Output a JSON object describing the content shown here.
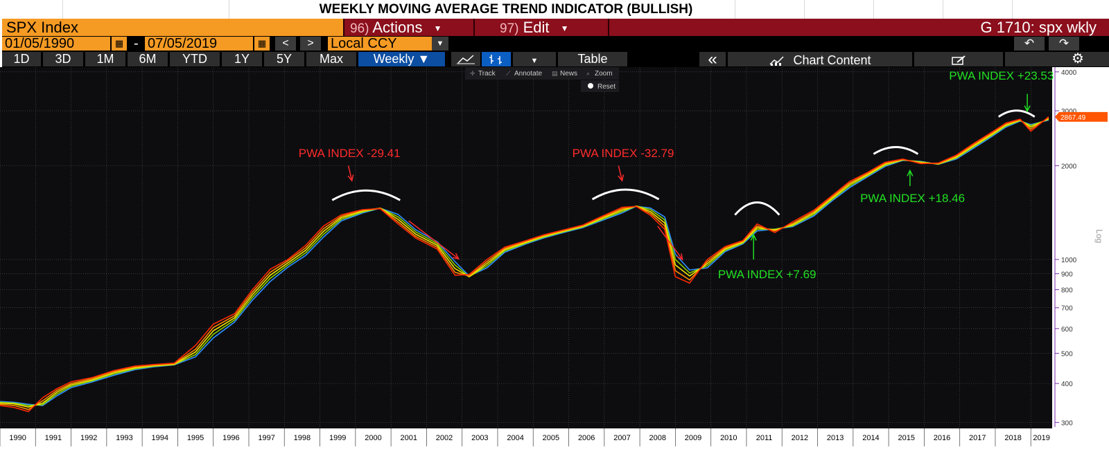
{
  "sheet": {
    "title": "WEEKLY MOVING AVERAGE TREND INDICATOR (BULLISH)"
  },
  "header": {
    "security": "SPX Index",
    "actions": {
      "num": "96)",
      "label": "Actions"
    },
    "edit": {
      "num": "97)",
      "label": "Edit"
    },
    "ticker": "G 1710: spx wkly"
  },
  "range": {
    "start": "01/05/1990",
    "dash": "-",
    "end": "07/05/2019",
    "prev": "<",
    "next": ">",
    "currency": "Local CCY"
  },
  "toolbar": {
    "periods": [
      "1D",
      "3D",
      "1M",
      "6M",
      "YTD",
      "1Y",
      "5Y",
      "Max"
    ],
    "frequency": "Weekly ▼",
    "table": "Table",
    "collapse": "«",
    "chart_content": "Chart Content"
  },
  "chart_tools": {
    "track": "Track",
    "annotate": "Annotate",
    "news": "News",
    "zoom": "Zoom",
    "reset": "Reset"
  },
  "colors": {
    "background": "#0d0d10",
    "grid": "#5a5a5a",
    "ma_red": "#ff2a00",
    "ma_orange": "#ff8c00",
    "ma_yellow": "#f5e400",
    "ma_green": "#8ad400",
    "ma_blue": "#2f8fff",
    "bearish": "#ff2b2b",
    "bullish": "#22e022",
    "last_price": "#ff5500"
  },
  "chart_data": {
    "type": "line",
    "y_scale": "log",
    "ylim": [
      290,
      4100
    ],
    "y_ticks": [
      300,
      400,
      500,
      600,
      700,
      800,
      900,
      1000,
      2000,
      3000,
      4000
    ],
    "y_axis_label": "Log",
    "x_ticks": [
      "1990",
      "1991",
      "1992",
      "1993",
      "1994",
      "1995",
      "1996",
      "1997",
      "1998",
      "1999",
      "2000",
      "2001",
      "2002",
      "2003",
      "2004",
      "2005",
      "2006",
      "2007",
      "2008",
      "2009",
      "2010",
      "2011",
      "2012",
      "2013",
      "2014",
      "2015",
      "2016",
      "2017",
      "2018",
      "2019"
    ],
    "xlim": [
      1990.0,
      2019.6
    ],
    "last_price": "2867.49",
    "x": [
      1990.0,
      1990.4,
      1990.8,
      1991.2,
      1991.6,
      1992.0,
      1992.6,
      1993.2,
      1993.8,
      1994.3,
      1994.9,
      1995.5,
      1996.0,
      1996.6,
      1997.1,
      1997.6,
      1998.1,
      1998.6,
      1999.1,
      1999.6,
      2000.2,
      2000.7,
      2001.2,
      2001.7,
      2002.3,
      2002.8,
      2003.2,
      2003.7,
      2004.2,
      2004.8,
      2005.3,
      2005.8,
      2006.4,
      2006.9,
      2007.5,
      2007.9,
      2008.3,
      2008.7,
      2009.0,
      2009.4,
      2009.9,
      2010.4,
      2010.9,
      2011.3,
      2011.8,
      2012.3,
      2012.9,
      2013.4,
      2013.9,
      2014.4,
      2014.9,
      2015.4,
      2015.9,
      2016.4,
      2016.9,
      2017.4,
      2017.9,
      2018.3,
      2018.7,
      2019.0,
      2019.5
    ],
    "series": [
      {
        "values": [
          340,
          335,
          325,
          360,
          385,
          405,
          418,
          440,
          455,
          460,
          465,
          530,
          620,
          670,
          800,
          930,
          1000,
          1110,
          1280,
          1390,
          1445,
          1455,
          1300,
          1170,
          1080,
          890,
          895,
          1000,
          1095,
          1150,
          1200,
          1240,
          1290,
          1370,
          1470,
          1480,
          1385,
          1250,
          880,
          840,
          1000,
          1100,
          1150,
          1300,
          1220,
          1320,
          1440,
          1600,
          1780,
          1900,
          2050,
          2100,
          2030,
          2040,
          2160,
          2360,
          2560,
          2740,
          2820,
          2580,
          2870
        ]
      },
      {
        "values": [
          343,
          340,
          330,
          352,
          380,
          400,
          415,
          437,
          452,
          458,
          463,
          515,
          605,
          660,
          785,
          910,
          990,
          1090,
          1255,
          1375,
          1440,
          1460,
          1320,
          1185,
          1095,
          910,
          885,
          985,
          1085,
          1143,
          1193,
          1234,
          1284,
          1360,
          1455,
          1482,
          1405,
          1280,
          920,
          860,
          985,
          1090,
          1143,
          1280,
          1235,
          1305,
          1425,
          1585,
          1760,
          1885,
          2035,
          2095,
          2040,
          2030,
          2145,
          2340,
          2540,
          2720,
          2810,
          2620,
          2850
        ]
      },
      {
        "values": [
          346,
          344,
          336,
          346,
          375,
          396,
          411,
          433,
          449,
          456,
          461,
          505,
          590,
          650,
          770,
          890,
          975,
          1070,
          1230,
          1360,
          1430,
          1462,
          1345,
          1205,
          1110,
          935,
          880,
          970,
          1075,
          1136,
          1186,
          1228,
          1278,
          1350,
          1440,
          1484,
          1425,
          1310,
          960,
          885,
          970,
          1080,
          1136,
          1265,
          1245,
          1292,
          1410,
          1570,
          1740,
          1870,
          2020,
          2090,
          2050,
          2025,
          2130,
          2320,
          2520,
          2700,
          2800,
          2660,
          2830
        ]
      },
      {
        "values": [
          348,
          346,
          340,
          342,
          370,
          392,
          408,
          429,
          446,
          454,
          460,
          495,
          575,
          640,
          755,
          870,
          960,
          1050,
          1205,
          1345,
          1420,
          1462,
          1370,
          1225,
          1125,
          960,
          880,
          955,
          1065,
          1129,
          1179,
          1222,
          1272,
          1340,
          1425,
          1484,
          1445,
          1340,
          1000,
          905,
          955,
          1070,
          1129,
          1250,
          1250,
          1282,
          1395,
          1555,
          1720,
          1855,
          2005,
          2085,
          2058,
          2022,
          2115,
          2300,
          2500,
          2680,
          2790,
          2690,
          2815
        ]
      },
      {
        "values": [
          350,
          348,
          343,
          340,
          365,
          388,
          405,
          425,
          443,
          452,
          459,
          487,
          560,
          630,
          740,
          850,
          945,
          1030,
          1180,
          1330,
          1410,
          1460,
          1395,
          1245,
          1140,
          985,
          885,
          940,
          1055,
          1122,
          1172,
          1216,
          1266,
          1330,
          1410,
          1482,
          1462,
          1370,
          1040,
          925,
          940,
          1060,
          1122,
          1235,
          1252,
          1275,
          1380,
          1540,
          1700,
          1840,
          1990,
          2080,
          2064,
          2020,
          2100,
          2280,
          2480,
          2660,
          2780,
          2710,
          2800
        ]
      }
    ],
    "annotations": [
      {
        "text": "PWA INDEX -29.41",
        "kind": "bearish"
      },
      {
        "text": "PWA INDEX -32.79",
        "kind": "bearish"
      },
      {
        "text": "PWA INDEX +7.69",
        "kind": "bullish"
      },
      {
        "text": "PWA INDEX +18.46",
        "kind": "bullish"
      },
      {
        "text": "PWA INDEX +23.53",
        "kind": "bullish"
      }
    ]
  }
}
